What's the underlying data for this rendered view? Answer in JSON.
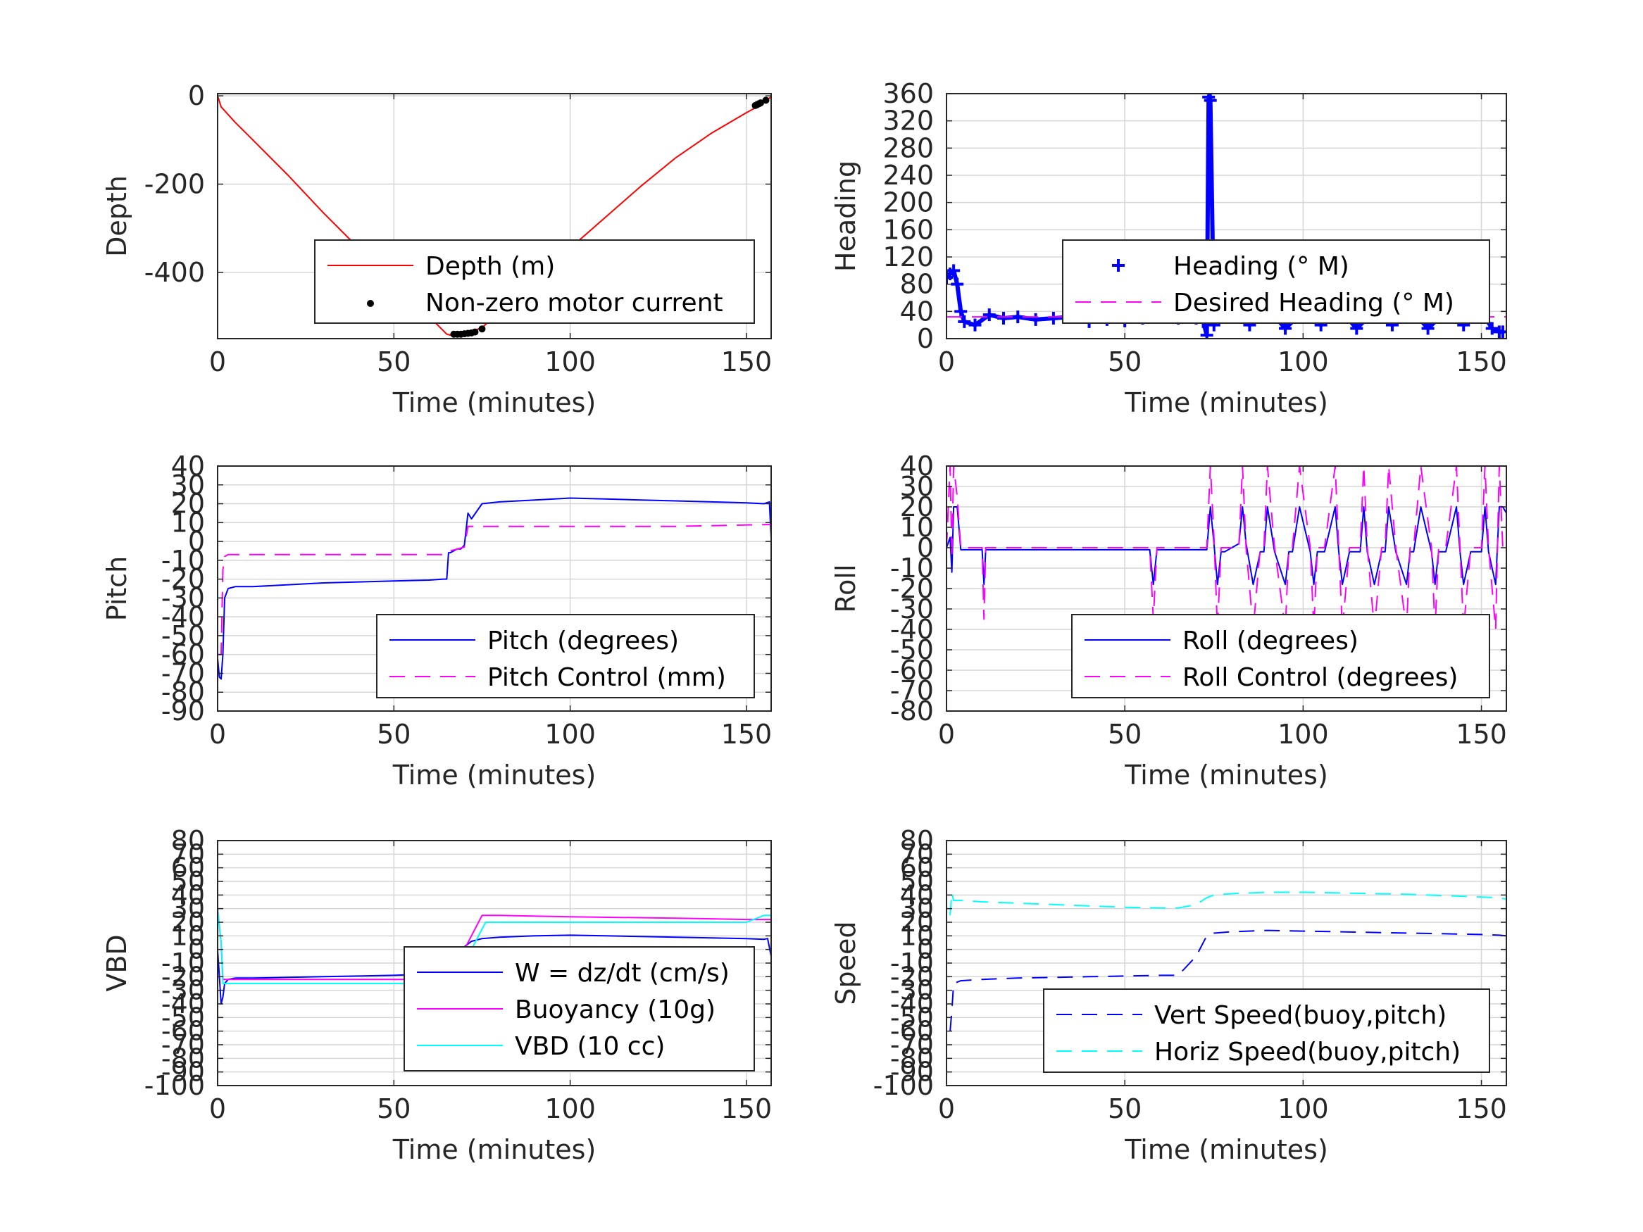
{
  "chart_data": [
    {
      "type": "line",
      "ylabel": "Depth",
      "xlabel": "Time (minutes)",
      "xlim": [
        0,
        157
      ],
      "ylim": [
        -550,
        5
      ],
      "xticks": [
        0,
        50,
        100,
        150
      ],
      "xtick_labels": [
        "0",
        "50",
        "100",
        "150"
      ],
      "yticks": [
        -400,
        -200,
        0
      ],
      "ytick_labels": [
        "-400",
        "-200",
        "0"
      ],
      "grid": true,
      "legend_position": "lower-right",
      "series": [
        {
          "name": "Depth (m)",
          "color": "#ff0000",
          "style": "solid",
          "x": [
            0,
            1,
            5,
            10,
            20,
            30,
            40,
            50,
            60,
            65,
            66,
            70,
            75,
            80,
            90,
            100,
            110,
            120,
            130,
            140,
            150,
            153,
            155,
            157
          ],
          "y": [
            0,
            -25,
            -60,
            -100,
            -180,
            -265,
            -345,
            -420,
            -500,
            -540,
            -542,
            -540,
            -525,
            -490,
            -420,
            -345,
            -275,
            -205,
            -140,
            -85,
            -38,
            -25,
            -15,
            -2
          ]
        },
        {
          "name": "Non-zero motor current",
          "color": "#000000",
          "style": "points",
          "x": [
            67,
            68,
            69,
            70,
            71,
            72,
            73,
            75,
            152.5,
            153,
            153.5,
            154,
            155.5
          ],
          "y": [
            -540,
            -540,
            -540,
            -539,
            -538,
            -537,
            -535,
            -528,
            -22,
            -20,
            -18,
            -16,
            -10
          ]
        }
      ]
    },
    {
      "type": "scatter",
      "ylabel": "Heading",
      "xlabel": "Time (minutes)",
      "xlim": [
        0,
        157
      ],
      "ylim": [
        0,
        360
      ],
      "xticks": [
        0,
        50,
        100,
        150
      ],
      "xtick_labels": [
        "0",
        "50",
        "100",
        "150"
      ],
      "yticks": [
        0,
        40,
        80,
        120,
        160,
        200,
        240,
        280,
        320,
        360
      ],
      "ytick_labels": [
        "0",
        "40",
        "80",
        "120",
        "160",
        "200",
        "240",
        "280",
        "320",
        "360"
      ],
      "grid": true,
      "legend_position": "lower-right",
      "series": [
        {
          "name": "Heading (° M)",
          "color": "#0000ff",
          "style": "plus",
          "x": [
            0,
            1,
            2,
            3,
            4,
            5,
            8,
            12,
            16,
            20,
            25,
            30,
            35,
            40,
            45,
            50,
            55,
            60,
            65,
            70,
            72,
            73,
            73.5,
            74,
            75,
            77,
            80,
            85,
            90,
            95,
            100,
            105,
            110,
            115,
            120,
            125,
            130,
            135,
            140,
            145,
            150,
            153,
            155,
            156
          ],
          "y": [
            90,
            95,
            100,
            80,
            40,
            25,
            20,
            35,
            30,
            32,
            28,
            30,
            32,
            25,
            28,
            26,
            30,
            35,
            30,
            30,
            25,
            5,
            355,
            350,
            20,
            45,
            40,
            20,
            45,
            15,
            40,
            20,
            45,
            15,
            40,
            20,
            45,
            15,
            40,
            20,
            40,
            15,
            10,
            10
          ]
        },
        {
          "name": "Desired Heading (° M)",
          "color": "#ff00ff",
          "style": "dash",
          "x": [
            0,
            3,
            157
          ],
          "y": [
            32,
            32,
            32
          ]
        }
      ]
    },
    {
      "type": "line",
      "ylabel": "Pitch",
      "xlabel": "Time (minutes)",
      "xlim": [
        0,
        157
      ],
      "ylim": [
        -90,
        40
      ],
      "xticks": [
        0,
        50,
        100,
        150
      ],
      "xtick_labels": [
        "0",
        "50",
        "100",
        "150"
      ],
      "yticks": [
        -90,
        -80,
        -70,
        -60,
        -50,
        -40,
        -30,
        -20,
        -10,
        0,
        10,
        20,
        30,
        40
      ],
      "ytick_labels": [
        "-90",
        "-80",
        "-70",
        "-60",
        "-50",
        "-40",
        "-30",
        "-20",
        "-10",
        "0",
        "10",
        "20",
        "30",
        "40"
      ],
      "grid": true,
      "legend_position": "lower-right",
      "series": [
        {
          "name": "Pitch (degrees)",
          "color": "#0000ff",
          "style": "solid",
          "x": [
            0,
            0.5,
            1,
            1.5,
            2,
            3,
            5,
            10,
            20,
            30,
            40,
            50,
            60,
            64,
            65,
            65.5,
            66,
            68,
            69,
            70,
            71,
            72,
            75,
            80,
            90,
            100,
            110,
            120,
            130,
            140,
            150,
            155,
            156.5,
            157
          ],
          "y": [
            -62,
            -72,
            -73,
            -60,
            -30,
            -25,
            -24,
            -24,
            -23,
            -22,
            -21.5,
            -21,
            -20.5,
            -20,
            -20,
            -6,
            -6,
            -4,
            -4,
            -2,
            15,
            12,
            20,
            21,
            22,
            23,
            22.5,
            22,
            21.5,
            21,
            20.5,
            20,
            21,
            2
          ]
        },
        {
          "name": "Pitch Control (mm)",
          "color": "#ff00ff",
          "style": "dash",
          "x": [
            0,
            1,
            1.5,
            2,
            3,
            10,
            30,
            50,
            65,
            66,
            70,
            71,
            75,
            100,
            130,
            157
          ],
          "y": [
            -60,
            -60,
            -15,
            -8,
            -7,
            -7,
            -7,
            -7,
            -7,
            -5,
            -3,
            8,
            8,
            8,
            8,
            9
          ]
        }
      ]
    },
    {
      "type": "line",
      "ylabel": "Roll",
      "xlabel": "Time (minutes)",
      "xlim": [
        0,
        157
      ],
      "ylim": [
        -80,
        40
      ],
      "xticks": [
        0,
        50,
        100,
        150
      ],
      "xtick_labels": [
        "0",
        "50",
        "100",
        "150"
      ],
      "yticks": [
        -80,
        -70,
        -60,
        -50,
        -40,
        -30,
        -20,
        -10,
        0,
        10,
        20,
        30,
        40
      ],
      "ytick_labels": [
        "-80",
        "-70",
        "-60",
        "-50",
        "-40",
        "-30",
        "-20",
        "-10",
        "0",
        "10",
        "20",
        "30",
        "40"
      ],
      "grid": true,
      "legend_position": "lower-right",
      "series": [
        {
          "name": "Roll (degrees)",
          "color": "#0000ff",
          "style": "solid",
          "x": [
            0,
            1,
            1.5,
            2,
            3,
            4,
            5,
            10,
            10.5,
            11,
            12,
            30,
            57,
            58,
            59,
            73,
            74,
            75,
            76,
            77,
            78,
            82,
            83,
            84,
            86,
            88,
            89,
            90,
            92,
            95,
            96,
            97,
            99,
            102,
            103,
            104,
            106,
            109,
            110,
            111,
            113,
            116,
            117,
            118,
            120,
            122,
            123,
            124,
            126,
            129,
            130,
            131,
            133,
            136,
            137,
            138,
            140,
            143,
            144,
            145,
            147,
            150,
            151,
            152,
            154,
            155,
            156,
            157
          ],
          "y": [
            0,
            5,
            -12,
            20,
            20,
            -1,
            -1,
            -1,
            -18,
            -1,
            -1,
            -1,
            -1,
            -18,
            -1,
            -1,
            20,
            2,
            -18,
            -2,
            -2,
            2,
            20,
            2,
            -18,
            -2,
            -2,
            20,
            -2,
            -18,
            -2,
            -2,
            20,
            -2,
            -18,
            -2,
            -2,
            20,
            -2,
            -18,
            -2,
            -2,
            20,
            -2,
            -18,
            -2,
            -2,
            20,
            -2,
            -18,
            -2,
            -2,
            20,
            -2,
            -18,
            -2,
            -2,
            20,
            -2,
            -18,
            -2,
            -2,
            20,
            -2,
            -18,
            20,
            20,
            17
          ]
        },
        {
          "name": "Roll Control (degrees)",
          "color": "#ff00ff",
          "style": "dash",
          "x": [
            0,
            1,
            1.5,
            2,
            3,
            4,
            5,
            10,
            10.5,
            11,
            12,
            57,
            58,
            59,
            73,
            74,
            75,
            76,
            77,
            78,
            82,
            83,
            84,
            86,
            88,
            89,
            90,
            92,
            95,
            96,
            97,
            99,
            102,
            103,
            104,
            106,
            109,
            110,
            111,
            113,
            116,
            117,
            118,
            120,
            122,
            123,
            124,
            126,
            129,
            130,
            131,
            133,
            136,
            137,
            138,
            140,
            143,
            144,
            145,
            147,
            150,
            151,
            152,
            154,
            155,
            156
          ],
          "y": [
            0,
            40,
            -5,
            40,
            25,
            0,
            0,
            0,
            -35,
            0,
            0,
            0,
            -35,
            0,
            0,
            40,
            5,
            -40,
            0,
            0,
            0,
            40,
            0,
            -40,
            0,
            0,
            40,
            0,
            -40,
            0,
            0,
            40,
            0,
            -40,
            0,
            0,
            40,
            0,
            -40,
            0,
            0,
            40,
            0,
            -40,
            0,
            0,
            40,
            0,
            -40,
            0,
            0,
            40,
            0,
            -40,
            0,
            0,
            40,
            0,
            -40,
            0,
            0,
            40,
            0,
            -40,
            40,
            0
          ]
        }
      ]
    },
    {
      "type": "line",
      "ylabel": "VBD",
      "xlabel": "Time (minutes)",
      "xlim": [
        0,
        157
      ],
      "ylim": [
        -100,
        80
      ],
      "xticks": [
        0,
        50,
        100,
        150
      ],
      "xtick_labels": [
        "0",
        "50",
        "100",
        "150"
      ],
      "yticks": [
        -100,
        -90,
        -80,
        -70,
        -60,
        -50,
        -40,
        -30,
        -20,
        -10,
        0,
        10,
        20,
        30,
        40,
        50,
        60,
        70,
        80
      ],
      "ytick_labels": [
        "-100",
        "-90",
        "-80",
        "-70",
        "-60",
        "-50",
        "-40",
        "-30",
        "-20",
        "-10",
        "0",
        "10",
        "20",
        "30",
        "40",
        "50",
        "60",
        "70",
        "80"
      ],
      "grid": true,
      "legend_position": "lower-right",
      "series": [
        {
          "name": "W = dz/dt (cm/s)",
          "color": "#0000ff",
          "style": "solid",
          "x": [
            0,
            0.5,
            1,
            1.5,
            2,
            3,
            5,
            10,
            20,
            30,
            40,
            50,
            60,
            65,
            66,
            68,
            70,
            72,
            75,
            80,
            90,
            100,
            110,
            120,
            130,
            140,
            150,
            155,
            156,
            157
          ],
          "y": [
            0,
            -20,
            -40,
            -35,
            -25,
            -22,
            -21,
            -21,
            -20.5,
            -20,
            -19.5,
            -19,
            -18,
            -18,
            -10,
            -2,
            2,
            6,
            8,
            9,
            10,
            10.5,
            10,
            9.5,
            9,
            8.5,
            8,
            7.5,
            8,
            -5
          ]
        },
        {
          "name": "Buoyancy (10g)",
          "color": "#ff00ff",
          "style": "solid",
          "x": [
            0,
            1,
            1.5,
            2,
            5,
            10,
            30,
            50,
            65,
            70,
            75,
            80,
            100,
            130,
            150,
            157
          ],
          "y": [
            30,
            5,
            -22,
            -22,
            -22,
            -22,
            -22,
            -22,
            -22,
            0,
            25,
            25,
            24,
            23,
            22,
            22
          ]
        },
        {
          "name": "VBD (10 cc)",
          "color": "#00ffff",
          "style": "solid",
          "x": [
            0,
            1,
            1.5,
            2,
            5,
            10,
            30,
            50,
            67,
            72,
            76,
            80,
            100,
            130,
            150,
            155,
            157
          ],
          "y": [
            30,
            5,
            -25,
            -25,
            -25,
            -25,
            -25,
            -25,
            -25,
            0,
            20,
            20,
            20,
            20,
            20,
            25,
            25
          ]
        }
      ]
    },
    {
      "type": "line",
      "ylabel": "Speed",
      "xlabel": "Time (minutes)",
      "xlim": [
        0,
        157
      ],
      "ylim": [
        -100,
        80
      ],
      "xticks": [
        0,
        50,
        100,
        150
      ],
      "xtick_labels": [
        "0",
        "50",
        "100",
        "150"
      ],
      "yticks": [
        -100,
        -90,
        -80,
        -70,
        -60,
        -50,
        -40,
        -30,
        -20,
        -10,
        0,
        10,
        20,
        30,
        40,
        50,
        60,
        70,
        80
      ],
      "ytick_labels": [
        "-100",
        "-90",
        "-80",
        "-70",
        "-60",
        "-50",
        "-40",
        "-30",
        "-20",
        "-10",
        "0",
        "10",
        "20",
        "30",
        "40",
        "50",
        "60",
        "70",
        "80"
      ],
      "grid": true,
      "legend_position": "lower-right",
      "series": [
        {
          "name": "Vert Speed(buoy,pitch)",
          "color": "#0000ff",
          "style": "dash",
          "x": [
            1,
            1.5,
            2,
            4,
            10,
            20,
            30,
            40,
            50,
            60,
            65,
            70,
            73,
            75,
            80,
            90,
            100,
            110,
            120,
            130,
            140,
            150,
            155,
            157
          ],
          "y": [
            -60,
            -45,
            -25,
            -23,
            -22,
            -21,
            -20.5,
            -20,
            -19.5,
            -19,
            -19,
            -5,
            10,
            12,
            13,
            14,
            13.5,
            13,
            12.5,
            12,
            11.5,
            11,
            10.5,
            10
          ]
        },
        {
          "name": "Horiz Speed(buoy,pitch)",
          "color": "#00ffff",
          "style": "dash",
          "x": [
            1,
            1.5,
            2,
            4,
            10,
            20,
            30,
            40,
            50,
            60,
            65,
            70,
            73,
            75,
            80,
            90,
            100,
            110,
            120,
            130,
            140,
            150,
            155,
            157
          ],
          "y": [
            25,
            42,
            36,
            36,
            35,
            34,
            33,
            32,
            31,
            30.5,
            30.5,
            33,
            38,
            40,
            41,
            42,
            42,
            41.5,
            41,
            40.5,
            39.5,
            38.5,
            38,
            37
          ]
        }
      ]
    }
  ]
}
